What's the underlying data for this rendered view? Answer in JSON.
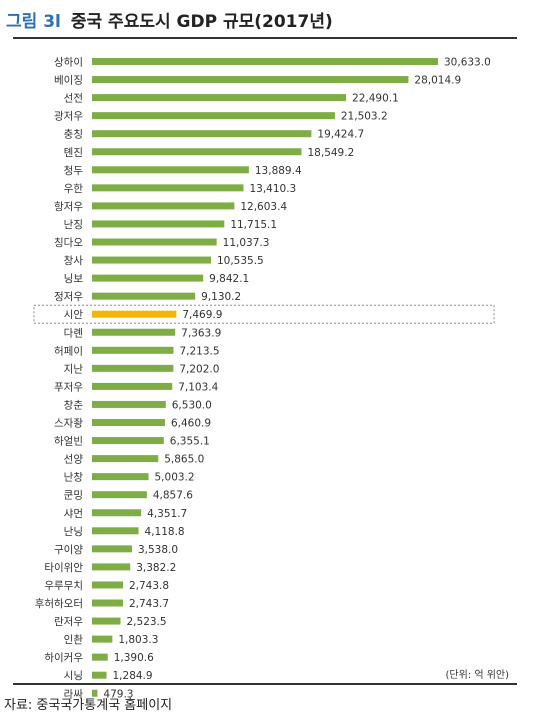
{
  "figure": {
    "label": "그림 3l",
    "title": "중국 주요도시 GDP 규모(2017년)",
    "unit_note": "(단위: 억 위안)",
    "source": "자료: 중국국가통계국 홈페이지"
  },
  "chart_data": {
    "type": "bar",
    "orientation": "horizontal",
    "categories": [
      "상하이",
      "베이징",
      "선전",
      "광저우",
      "충칭",
      "톈진",
      "청두",
      "우한",
      "항저우",
      "난징",
      "칭다오",
      "창사",
      "닝보",
      "정저우",
      "시안",
      "다롄",
      "허페이",
      "지난",
      "푸저우",
      "창춘",
      "스자좡",
      "하얼빈",
      "선양",
      "난창",
      "쿤밍",
      "샤먼",
      "난닝",
      "구이양",
      "타이위안",
      "우루무치",
      "후허하오터",
      "란저우",
      "인촨",
      "하이커우",
      "시닝",
      "라싸"
    ],
    "values": [
      30633.0,
      28014.9,
      22490.1,
      21503.2,
      19424.7,
      18549.2,
      13889.4,
      13410.3,
      12603.4,
      11715.1,
      11037.3,
      10535.5,
      9842.1,
      9130.2,
      7469.9,
      7363.9,
      7213.5,
      7202.0,
      7103.4,
      6530.0,
      6460.9,
      6355.1,
      5865.0,
      5003.2,
      4857.6,
      4351.7,
      4118.8,
      3538.0,
      3382.2,
      2743.8,
      2743.7,
      2523.5,
      1803.3,
      1390.6,
      1284.9,
      479.3
    ],
    "value_labels": [
      "30,633.0",
      "28,014.9",
      "22,490.1",
      "21,503.2",
      "19,424.7",
      "18,549.2",
      "13,889.4",
      "13,410.3",
      "12,603.4",
      "11,715.1",
      "11,037.3",
      "10,535.5",
      "9,842.1",
      "9,130.2",
      "7,469.9",
      "7,363.9",
      "7,213.5",
      "7,202.0",
      "7,103.4",
      "6,530.0",
      "6,460.9",
      "6,355.1",
      "5,865.0",
      "5,003.2",
      "4,857.6",
      "4,351.7",
      "4,118.8",
      "3,538.0",
      "3,382.2",
      "2,743.8",
      "2,743.7",
      "2,523.5",
      "1,803.3",
      "1,390.6",
      "1,284.9",
      "479.3"
    ],
    "highlight_category": "시안",
    "xlim": [
      0,
      35000
    ],
    "grid": false,
    "colors": {
      "bar": "#7fad45",
      "highlight": "#f5b800",
      "highlight_box": "#8c8c8c"
    }
  }
}
